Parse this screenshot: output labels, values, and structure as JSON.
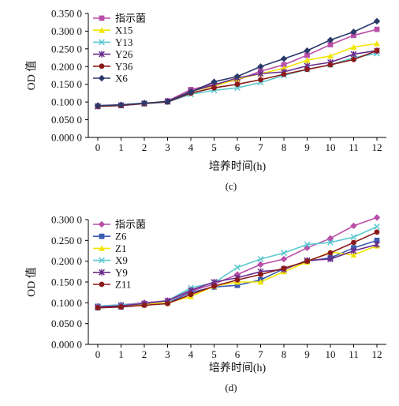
{
  "chart_data": [
    {
      "type": "line",
      "caption": "(c)",
      "xlabel": "培养时间(h)",
      "ylabel": "OD 值",
      "x": [
        0,
        1,
        2,
        3,
        4,
        5,
        6,
        7,
        8,
        9,
        10,
        11,
        12
      ],
      "ylim": [
        0,
        0.35
      ],
      "yticks": [
        "0.000 0",
        "0.050 0",
        "0.100 0",
        "0.150 0",
        "0.200 0",
        "0.250 0",
        "0.300 0",
        "0.350 0"
      ],
      "legend_position": "top-left",
      "series": [
        {
          "name": "指示菌",
          "color": "#b94fa8",
          "marker": "square",
          "values": [
            0.088,
            0.09,
            0.095,
            0.103,
            0.135,
            0.15,
            0.162,
            0.187,
            0.205,
            0.232,
            0.262,
            0.288,
            0.305
          ]
        },
        {
          "name": "X15",
          "color": "#f2e500",
          "marker": "triangle",
          "values": [
            0.089,
            0.091,
            0.096,
            0.102,
            0.13,
            0.145,
            0.165,
            0.18,
            0.195,
            0.218,
            0.23,
            0.255,
            0.265
          ]
        },
        {
          "name": "Y13",
          "color": "#5cc8d0",
          "marker": "x",
          "values": [
            0.087,
            0.09,
            0.095,
            0.1,
            0.122,
            0.133,
            0.14,
            0.155,
            0.175,
            0.192,
            0.205,
            0.225,
            0.237
          ]
        },
        {
          "name": "Y26",
          "color": "#6a2c8c",
          "marker": "star",
          "values": [
            0.088,
            0.091,
            0.096,
            0.102,
            0.13,
            0.148,
            0.168,
            0.18,
            0.185,
            0.202,
            0.212,
            0.235,
            0.245
          ]
        },
        {
          "name": "Y36",
          "color": "#8b1a1a",
          "marker": "circle",
          "values": [
            0.088,
            0.09,
            0.096,
            0.1,
            0.125,
            0.14,
            0.15,
            0.163,
            0.178,
            0.192,
            0.205,
            0.22,
            0.245
          ]
        },
        {
          "name": "X6",
          "color": "#2b3a6b",
          "marker": "diamond",
          "values": [
            0.09,
            0.092,
            0.097,
            0.101,
            0.128,
            0.157,
            0.172,
            0.2,
            0.222,
            0.245,
            0.275,
            0.298,
            0.328
          ]
        }
      ]
    },
    {
      "type": "line",
      "caption": "(d)",
      "xlabel": "培养时间(h)",
      "ylabel": "OD 值",
      "x": [
        0,
        1,
        2,
        3,
        4,
        5,
        6,
        7,
        8,
        9,
        10,
        11,
        12
      ],
      "ylim": [
        0,
        0.3
      ],
      "yticks": [
        "0.000 0",
        "0.050 0",
        "0.100 0",
        "0.150 0",
        "0.200 0",
        "0.250 0",
        "0.300 0"
      ],
      "legend_position": "top-left",
      "series": [
        {
          "name": "指示菌",
          "color": "#b94fa8",
          "marker": "diamond",
          "values": [
            0.092,
            0.095,
            0.1,
            0.105,
            0.128,
            0.145,
            0.168,
            0.192,
            0.205,
            0.232,
            0.255,
            0.285,
            0.305
          ]
        },
        {
          "name": "Z6",
          "color": "#3b5bb0",
          "marker": "square",
          "values": [
            0.088,
            0.09,
            0.095,
            0.1,
            0.125,
            0.138,
            0.142,
            0.155,
            0.182,
            0.2,
            0.208,
            0.232,
            0.25
          ]
        },
        {
          "name": "Z1",
          "color": "#f2e500",
          "marker": "triangle",
          "values": [
            0.089,
            0.092,
            0.096,
            0.1,
            0.115,
            0.14,
            0.15,
            0.15,
            0.175,
            0.198,
            0.222,
            0.215,
            0.237
          ]
        },
        {
          "name": "X9",
          "color": "#5cc8d0",
          "marker": "x",
          "values": [
            0.092,
            0.095,
            0.098,
            0.105,
            0.136,
            0.148,
            0.185,
            0.205,
            0.22,
            0.24,
            0.245,
            0.258,
            0.283
          ]
        },
        {
          "name": "Y9",
          "color": "#6a2c8c",
          "marker": "star",
          "values": [
            0.09,
            0.093,
            0.098,
            0.105,
            0.13,
            0.15,
            0.16,
            0.175,
            0.18,
            0.202,
            0.205,
            0.225,
            0.24
          ]
        },
        {
          "name": "Z11",
          "color": "#8b1a1a",
          "marker": "circle",
          "values": [
            0.088,
            0.09,
            0.094,
            0.098,
            0.12,
            0.14,
            0.155,
            0.168,
            0.183,
            0.2,
            0.22,
            0.245,
            0.27
          ]
        }
      ]
    }
  ]
}
